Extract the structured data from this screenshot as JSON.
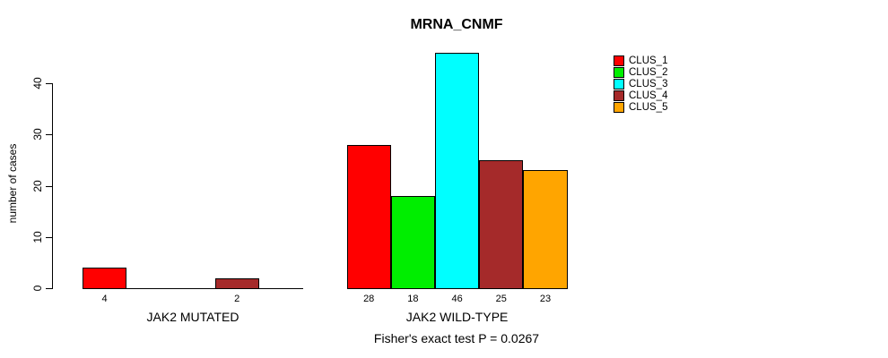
{
  "chart_data": {
    "type": "bar",
    "title": "MRNA_CNMF",
    "subtitle": "Fisher's exact test P = 0.0267",
    "xlabel": "",
    "ylabel": "number of cases",
    "categories": [
      "JAK2 MUTATED",
      "JAK2 WILD-TYPE"
    ],
    "series": [
      {
        "name": "CLUS_1",
        "color": "#ff0000",
        "values": [
          4,
          28
        ]
      },
      {
        "name": "CLUS_2",
        "color": "#00ee00",
        "values": [
          0,
          18
        ]
      },
      {
        "name": "CLUS_3",
        "color": "#00ffff",
        "values": [
          0,
          46
        ]
      },
      {
        "name": "CLUS_4",
        "color": "#a52a2a",
        "values": [
          2,
          25
        ]
      },
      {
        "name": "CLUS_5",
        "color": "#ffa500",
        "values": [
          0,
          23
        ]
      }
    ],
    "yticks": [
      0,
      10,
      20,
      30,
      40
    ],
    "ylim": [
      0,
      46
    ],
    "grid": false,
    "legend_position": "top-right",
    "bar_border_color": "#000000",
    "zero_value_bars_hidden": true
  }
}
